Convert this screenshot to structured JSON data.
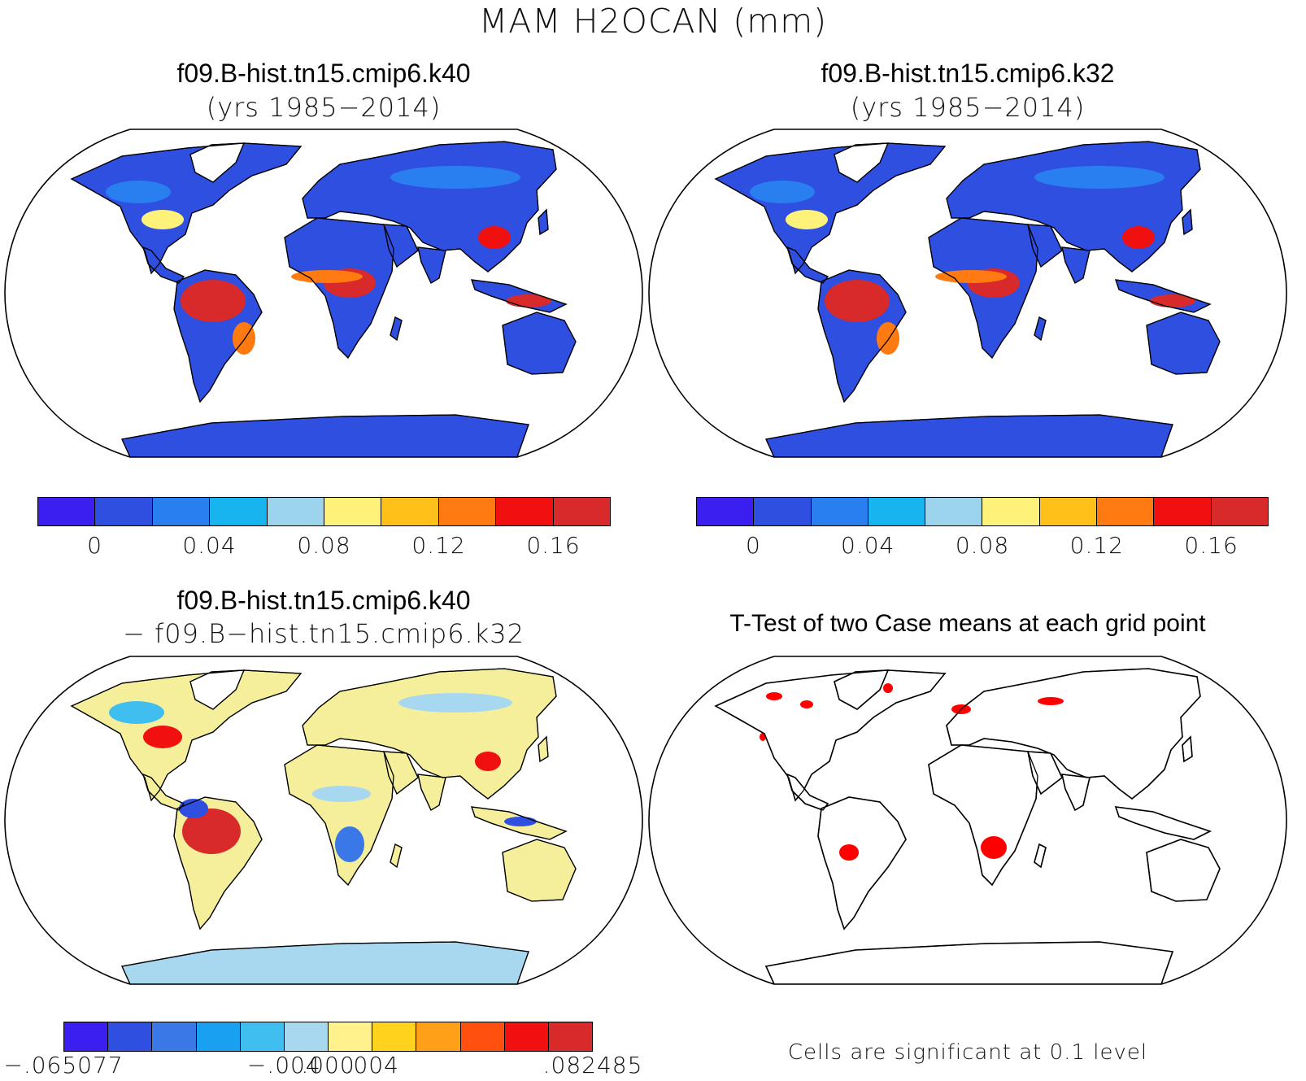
{
  "figure": {
    "title": "MAM H2OCAN (mm)"
  },
  "panels": {
    "top_left": {
      "case": "f09.B-hist.tn15.cmip6.k40",
      "years": "(yrs 1985−2014)"
    },
    "top_right": {
      "case": "f09.B-hist.tn15.cmip6.k32",
      "years": "(yrs 1985−2014)"
    },
    "bottom_left": {
      "line1": "f09.B-hist.tn15.cmip6.k40",
      "line2": "− f09.B−hist.tn15.cmip6.k32"
    },
    "bottom_right": {
      "title": "T-Test of two Case means at each grid point",
      "note": "Cells are significant at 0.1 level"
    }
  },
  "colorbars": {
    "field": {
      "colors": [
        "#3a1ff0",
        "#2e4fe0",
        "#2a7ff0",
        "#18b4f0",
        "#9cd4ee",
        "#fff27a",
        "#ffc01a",
        "#ff7a10",
        "#f01010",
        "#d82a2a"
      ],
      "labels": [
        {
          "text": "0",
          "boundary": 1
        },
        {
          "text": "0.04",
          "boundary": 3
        },
        {
          "text": "0.08",
          "boundary": 5
        },
        {
          "text": "0.12",
          "boundary": 7
        },
        {
          "text": "0.16",
          "boundary": 9
        }
      ]
    },
    "diff": {
      "colors": [
        "#3a1ff0",
        "#2e4fe0",
        "#3a78e8",
        "#1aa0f0",
        "#40bef0",
        "#a8d8f0",
        "#fff28c",
        "#ffd21e",
        "#ffa018",
        "#ff5010",
        "#f01010",
        "#d82a2a"
      ],
      "labels": [
        {
          "text": "−.065077",
          "boundary": 0
        },
        {
          "text": "−.004",
          "boundary": 5
        },
        {
          "text": ".000",
          "boundary": 6
        },
        {
          "text": ".004",
          "boundary": 7
        },
        {
          "text": ".082485",
          "boundary": 12
        }
      ]
    }
  },
  "map_style": {
    "land_field": "#2e4fe0",
    "land_diff": "#f5ee9a",
    "ocean": "#ffffff",
    "significant": "#ff0000"
  }
}
